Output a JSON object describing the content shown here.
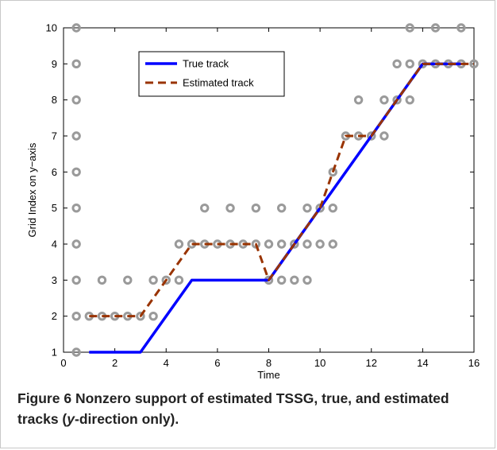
{
  "figure": {
    "label": "Figure 6",
    "caption_parts": [
      "Nonzero support of estimated TSSG, true, and estimated tracks (",
      "y",
      "-direction only)."
    ]
  },
  "chart_data": {
    "type": "line",
    "xlabel": "Time",
    "ylabel": "Grid Index on y−axis",
    "xlim": [
      0,
      16
    ],
    "ylim": [
      1,
      10
    ],
    "xticks": [
      0,
      2,
      4,
      6,
      8,
      10,
      12,
      14,
      16
    ],
    "yticks": [
      1,
      2,
      3,
      4,
      5,
      6,
      7,
      8,
      9,
      10
    ],
    "grid": false,
    "legend_position": "top-left",
    "colors": {
      "true_track": "#0000ff",
      "estimated_track": "#993300",
      "support": "#9a9a9a"
    },
    "series": [
      {
        "name": "True track",
        "style": "solid",
        "points": [
          [
            1,
            1
          ],
          [
            3,
            1
          ],
          [
            5,
            3
          ],
          [
            8,
            3
          ],
          [
            14,
            9
          ],
          [
            15.5,
            9
          ]
        ]
      },
      {
        "name": "Estimated track",
        "style": "dashed",
        "points": [
          [
            1,
            2
          ],
          [
            3,
            2
          ],
          [
            5,
            4
          ],
          [
            7.5,
            4
          ],
          [
            8,
            3
          ],
          [
            9,
            4
          ],
          [
            10,
            5
          ],
          [
            10.5,
            6
          ],
          [
            11,
            7
          ],
          [
            12,
            7
          ],
          [
            14,
            9
          ],
          [
            16,
            9
          ]
        ]
      }
    ],
    "support_points": [
      [
        0.5,
        1
      ],
      [
        0.5,
        2
      ],
      [
        0.5,
        3
      ],
      [
        0.5,
        4
      ],
      [
        0.5,
        5
      ],
      [
        0.5,
        6
      ],
      [
        0.5,
        7
      ],
      [
        0.5,
        8
      ],
      [
        0.5,
        9
      ],
      [
        0.5,
        10
      ],
      [
        1,
        2
      ],
      [
        1.5,
        2
      ],
      [
        2,
        2
      ],
      [
        2.5,
        2
      ],
      [
        3,
        2
      ],
      [
        3.5,
        2
      ],
      [
        1.5,
        3
      ],
      [
        2.5,
        3
      ],
      [
        3.5,
        3
      ],
      [
        4,
        3
      ],
      [
        4.5,
        3
      ],
      [
        4.5,
        4
      ],
      [
        5,
        4
      ],
      [
        5.5,
        4
      ],
      [
        6,
        4
      ],
      [
        6.5,
        4
      ],
      [
        7,
        4
      ],
      [
        7.5,
        4
      ],
      [
        8,
        4
      ],
      [
        8.5,
        4
      ],
      [
        9,
        4
      ],
      [
        9.5,
        4
      ],
      [
        10,
        4
      ],
      [
        10.5,
        4
      ],
      [
        5.5,
        5
      ],
      [
        6.5,
        5
      ],
      [
        7.5,
        5
      ],
      [
        8.5,
        5
      ],
      [
        9.5,
        5
      ],
      [
        10,
        5
      ],
      [
        10.5,
        5
      ],
      [
        8,
        3
      ],
      [
        8.5,
        3
      ],
      [
        9,
        3
      ],
      [
        9.5,
        3
      ],
      [
        10.5,
        6
      ],
      [
        11,
        7
      ],
      [
        11.5,
        7
      ],
      [
        12,
        7
      ],
      [
        12.5,
        7
      ],
      [
        11.5,
        8
      ],
      [
        12.5,
        8
      ],
      [
        13,
        8
      ],
      [
        13.5,
        8
      ],
      [
        13,
        9
      ],
      [
        13.5,
        9
      ],
      [
        14,
        9
      ],
      [
        14.5,
        9
      ],
      [
        15,
        9
      ],
      [
        15.5,
        9
      ],
      [
        16,
        9
      ],
      [
        13.5,
        10
      ],
      [
        14.5,
        10
      ],
      [
        15.5,
        10
      ]
    ]
  }
}
